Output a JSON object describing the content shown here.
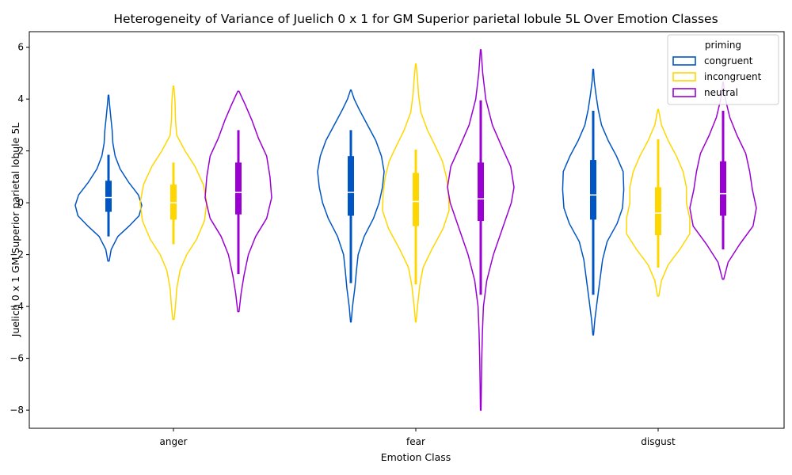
{
  "chart_data": {
    "type": "violin",
    "title": "Heterogeneity of Variance of Juelich 0 x 1 for GM Superior parietal lobule 5L Over Emotion Classes",
    "xlabel": "Emotion Class",
    "ylabel": "Juelich 0 x 1 GM Superior parietal lobule 5L",
    "ylim": [
      -8.7,
      6.6
    ],
    "yticks": [
      -8,
      -6,
      -4,
      -2,
      0,
      2,
      4,
      6
    ],
    "categories": [
      "anger",
      "fear",
      "disgust"
    ],
    "legend": {
      "title": "priming",
      "position": "top-right"
    },
    "series": [
      {
        "name": "congruent",
        "color": "#0055c4",
        "groups": [
          {
            "min": -2.25,
            "max": 4.15,
            "whisker_low": -1.3,
            "q1": -0.35,
            "median": 0.2,
            "q3": 0.85,
            "whisker_high": 1.85,
            "profile": [
              [
                -2.25,
                0.02
              ],
              [
                -1.8,
                0.08
              ],
              [
                -1.3,
                0.28
              ],
              [
                -0.9,
                0.62
              ],
              [
                -0.5,
                0.92
              ],
              [
                -0.1,
                1.0
              ],
              [
                0.3,
                0.9
              ],
              [
                0.8,
                0.6
              ],
              [
                1.3,
                0.35
              ],
              [
                1.8,
                0.2
              ],
              [
                2.3,
                0.13
              ],
              [
                2.8,
                0.11
              ],
              [
                3.3,
                0.07
              ],
              [
                3.8,
                0.03
              ],
              [
                4.15,
                0.01
              ]
            ]
          },
          {
            "min": -4.6,
            "max": 4.35,
            "whisker_low": -3.1,
            "q1": -0.5,
            "median": 0.4,
            "q3": 1.8,
            "whisker_high": 2.8,
            "profile": [
              [
                -4.6,
                0.01
              ],
              [
                -4.0,
                0.05
              ],
              [
                -3.3,
                0.12
              ],
              [
                -2.6,
                0.17
              ],
              [
                -2.0,
                0.22
              ],
              [
                -1.3,
                0.4
              ],
              [
                -0.6,
                0.68
              ],
              [
                0.0,
                0.85
              ],
              [
                0.6,
                0.95
              ],
              [
                1.2,
                1.0
              ],
              [
                1.8,
                0.92
              ],
              [
                2.4,
                0.75
              ],
              [
                3.0,
                0.5
              ],
              [
                3.6,
                0.25
              ],
              [
                4.0,
                0.1
              ],
              [
                4.35,
                0.01
              ]
            ]
          },
          {
            "min": -5.1,
            "max": 5.15,
            "whisker_low": -3.55,
            "q1": -0.65,
            "median": 0.3,
            "q3": 1.65,
            "whisker_high": 3.55,
            "profile": [
              [
                -5.1,
                0.01
              ],
              [
                -4.5,
                0.05
              ],
              [
                -3.8,
                0.12
              ],
              [
                -3.0,
                0.2
              ],
              [
                -2.2,
                0.28
              ],
              [
                -1.5,
                0.42
              ],
              [
                -0.8,
                0.72
              ],
              [
                -0.2,
                0.88
              ],
              [
                0.5,
                0.92
              ],
              [
                1.2,
                0.9
              ],
              [
                1.8,
                0.7
              ],
              [
                2.4,
                0.45
              ],
              [
                3.0,
                0.25
              ],
              [
                3.6,
                0.15
              ],
              [
                4.2,
                0.08
              ],
              [
                4.7,
                0.03
              ],
              [
                5.15,
                0.01
              ]
            ]
          }
        ]
      },
      {
        "name": "incongruent",
        "color": "#ffd700",
        "groups": [
          {
            "min": -4.5,
            "max": 4.5,
            "whisker_low": -1.6,
            "q1": -0.65,
            "median": 0.0,
            "q3": 0.7,
            "whisker_high": 1.55,
            "profile": [
              [
                -4.5,
                0.02
              ],
              [
                -4.0,
                0.06
              ],
              [
                -3.3,
                0.1
              ],
              [
                -2.6,
                0.2
              ],
              [
                -2.0,
                0.4
              ],
              [
                -1.4,
                0.7
              ],
              [
                -0.7,
                0.93
              ],
              [
                0.0,
                1.0
              ],
              [
                0.7,
                0.9
              ],
              [
                1.4,
                0.65
              ],
              [
                2.0,
                0.35
              ],
              [
                2.6,
                0.1
              ],
              [
                3.2,
                0.06
              ],
              [
                3.8,
                0.05
              ],
              [
                4.2,
                0.03
              ],
              [
                4.5,
                0.01
              ]
            ]
          },
          {
            "min": -4.6,
            "max": 5.35,
            "whisker_low": -3.15,
            "q1": -0.9,
            "median": 0.05,
            "q3": 1.15,
            "whisker_high": 2.05,
            "profile": [
              [
                -4.6,
                0.01
              ],
              [
                -4.0,
                0.05
              ],
              [
                -3.2,
                0.12
              ],
              [
                -2.5,
                0.22
              ],
              [
                -1.8,
                0.48
              ],
              [
                -1.0,
                0.82
              ],
              [
                -0.3,
                1.0
              ],
              [
                0.4,
                0.98
              ],
              [
                1.0,
                0.92
              ],
              [
                1.6,
                0.8
              ],
              [
                2.2,
                0.58
              ],
              [
                2.8,
                0.35
              ],
              [
                3.5,
                0.15
              ],
              [
                4.2,
                0.08
              ],
              [
                4.8,
                0.05
              ],
              [
                5.35,
                0.01
              ]
            ]
          },
          {
            "min": -3.6,
            "max": 3.6,
            "whisker_low": -2.5,
            "q1": -1.25,
            "median": -0.4,
            "q3": 0.6,
            "whisker_high": 2.45,
            "profile": [
              [
                -3.6,
                0.02
              ],
              [
                -3.0,
                0.1
              ],
              [
                -2.4,
                0.3
              ],
              [
                -1.8,
                0.65
              ],
              [
                -1.2,
                0.95
              ],
              [
                -0.6,
                0.95
              ],
              [
                0.0,
                0.85
              ],
              [
                0.6,
                0.85
              ],
              [
                1.2,
                0.75
              ],
              [
                1.8,
                0.55
              ],
              [
                2.4,
                0.3
              ],
              [
                3.0,
                0.1
              ],
              [
                3.6,
                0.01
              ]
            ]
          }
        ]
      },
      {
        "name": "neutral",
        "color": "#9b00d3",
        "groups": [
          {
            "min": -4.2,
            "max": 4.3,
            "whisker_low": -2.75,
            "q1": -0.45,
            "median": 0.4,
            "q3": 1.55,
            "whisker_high": 2.8,
            "profile": [
              [
                -4.2,
                0.02
              ],
              [
                -3.5,
                0.08
              ],
              [
                -2.8,
                0.17
              ],
              [
                -2.0,
                0.3
              ],
              [
                -1.3,
                0.52
              ],
              [
                -0.6,
                0.85
              ],
              [
                0.2,
                1.0
              ],
              [
                1.0,
                0.95
              ],
              [
                1.8,
                0.85
              ],
              [
                2.5,
                0.6
              ],
              [
                3.2,
                0.4
              ],
              [
                3.8,
                0.2
              ],
              [
                4.3,
                0.02
              ]
            ]
          },
          {
            "min": -8.0,
            "max": 5.9,
            "whisker_low": -3.55,
            "q1": -0.7,
            "median": 0.15,
            "q3": 1.55,
            "whisker_high": 3.95,
            "profile": [
              [
                -8.0,
                0.01
              ],
              [
                -7.0,
                0.02
              ],
              [
                -6.0,
                0.03
              ],
              [
                -5.0,
                0.05
              ],
              [
                -4.0,
                0.08
              ],
              [
                -3.0,
                0.18
              ],
              [
                -2.0,
                0.38
              ],
              [
                -1.0,
                0.65
              ],
              [
                0.0,
                0.92
              ],
              [
                0.6,
                1.0
              ],
              [
                1.4,
                0.9
              ],
              [
                2.2,
                0.62
              ],
              [
                3.0,
                0.35
              ],
              [
                4.0,
                0.15
              ],
              [
                5.0,
                0.06
              ],
              [
                5.9,
                0.01
              ]
            ]
          },
          {
            "min": -2.95,
            "max": 4.65,
            "whisker_low": -1.8,
            "q1": -0.5,
            "median": 0.35,
            "q3": 1.6,
            "whisker_high": 3.55,
            "profile": [
              [
                -2.95,
                0.02
              ],
              [
                -2.3,
                0.15
              ],
              [
                -1.6,
                0.5
              ],
              [
                -0.9,
                0.9
              ],
              [
                -0.2,
                1.0
              ],
              [
                0.5,
                0.88
              ],
              [
                1.2,
                0.8
              ],
              [
                1.9,
                0.68
              ],
              [
                2.6,
                0.42
              ],
              [
                3.3,
                0.2
              ],
              [
                4.0,
                0.07
              ],
              [
                4.65,
                0.01
              ]
            ]
          }
        ]
      }
    ]
  }
}
